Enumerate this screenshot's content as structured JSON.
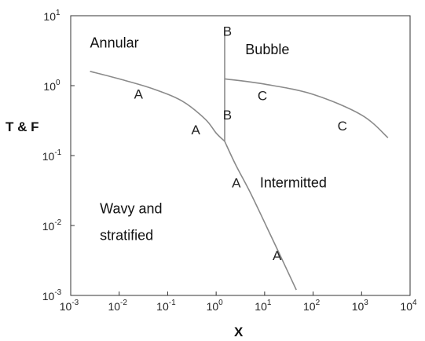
{
  "chart_data": {
    "type": "line",
    "title": "",
    "xlabel": "X",
    "ylabel": "T & F",
    "xscale": "log",
    "yscale": "log",
    "xlim": [
      0.001,
      10000
    ],
    "ylim": [
      0.001,
      10
    ],
    "x_ticks": [
      {
        "base": "10",
        "exp": "-3",
        "value": 0.001
      },
      {
        "base": "10",
        "exp": "-2",
        "value": 0.01
      },
      {
        "base": "10",
        "exp": "-1",
        "value": 0.1
      },
      {
        "base": "10",
        "exp": "0",
        "value": 1
      },
      {
        "base": "10",
        "exp": "1",
        "value": 10
      },
      {
        "base": "10",
        "exp": "2",
        "value": 100
      },
      {
        "base": "10",
        "exp": "3",
        "value": 1000
      },
      {
        "base": "10",
        "exp": "4",
        "value": 10000
      }
    ],
    "y_ticks": [
      {
        "base": "10",
        "exp": "-3",
        "value": 0.001
      },
      {
        "base": "10",
        "exp": "-2",
        "value": 0.01
      },
      {
        "base": "10",
        "exp": "-1",
        "value": 0.1
      },
      {
        "base": "10",
        "exp": "0",
        "value": 1
      },
      {
        "base": "10",
        "exp": "1",
        "value": 10
      }
    ],
    "series": [
      {
        "id": "curve-a-upper",
        "color": "#8a8a8a",
        "x": [
          0.0025,
          0.01,
          0.05,
          0.2,
          0.6,
          1.0,
          1.5
        ],
        "y": [
          1.6,
          1.25,
          0.9,
          0.6,
          0.33,
          0.21,
          0.16
        ]
      },
      {
        "id": "curve-a-lower",
        "color": "#8a8a8a",
        "x": [
          1.5,
          2.5,
          5,
          10,
          20,
          45
        ],
        "y": [
          0.16,
          0.075,
          0.03,
          0.011,
          0.004,
          0.0012
        ]
      },
      {
        "id": "curve-b",
        "color": "#8a8a8a",
        "x": [
          1.5,
          1.5
        ],
        "y": [
          0.16,
          6.0
        ]
      },
      {
        "id": "curve-c",
        "color": "#8a8a8a",
        "x": [
          1.5,
          10,
          100,
          1000,
          3500
        ],
        "y": [
          1.25,
          1.05,
          0.75,
          0.38,
          0.18
        ]
      }
    ],
    "region_labels": [
      {
        "text": "Annular",
        "x": 0.0025,
        "y": 3.5
      },
      {
        "text": "Bubble",
        "x": 4,
        "y": 2.8
      },
      {
        "text": "Intermitted",
        "x": 8,
        "y": 0.035
      },
      {
        "text": "Wavy and",
        "x": 0.004,
        "y": 0.015
      },
      {
        "text": "stratified",
        "x": 0.004,
        "y": 0.0062
      }
    ],
    "curve_labels": [
      {
        "text": "A",
        "x": 0.025,
        "y": 0.65
      },
      {
        "text": "A",
        "x": 0.38,
        "y": 0.2
      },
      {
        "text": "A",
        "x": 2.6,
        "y": 0.035
      },
      {
        "text": "A",
        "x": 18,
        "y": 0.0032
      },
      {
        "text": "B",
        "x": 1.7,
        "y": 5.2
      },
      {
        "text": "B",
        "x": 1.7,
        "y": 0.33
      },
      {
        "text": "C",
        "x": 9,
        "y": 0.62
      },
      {
        "text": "C",
        "x": 400,
        "y": 0.23
      }
    ]
  }
}
